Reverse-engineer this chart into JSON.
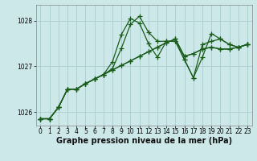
{
  "xlabel": "Graphe pression niveau de la mer (hPa)",
  "background_color": "#cce8e8",
  "grid_color": "#aacccc",
  "line_color": "#1a5c1a",
  "hours": [
    0,
    1,
    2,
    3,
    4,
    5,
    6,
    7,
    8,
    9,
    10,
    11,
    12,
    13,
    14,
    15,
    16,
    17,
    18,
    19,
    20,
    21,
    22,
    23
  ],
  "series": [
    [
      1025.85,
      1025.85,
      1026.1,
      1026.5,
      1026.5,
      1026.62,
      1026.72,
      1026.82,
      1026.92,
      1027.02,
      1027.12,
      1027.22,
      1027.32,
      1027.42,
      1027.52,
      1027.6,
      1027.22,
      1027.28,
      1027.38,
      1027.42,
      1027.38,
      1027.38,
      1027.42,
      1027.48
    ],
    [
      1025.85,
      1025.85,
      1026.1,
      1026.5,
      1026.5,
      1026.62,
      1026.72,
      1026.82,
      1026.92,
      1027.02,
      1027.12,
      1027.22,
      1027.32,
      1027.42,
      1027.52,
      1027.6,
      1027.22,
      1027.28,
      1027.38,
      1027.42,
      1027.38,
      1027.38,
      1027.42,
      1027.48
    ],
    [
      1025.85,
      1025.85,
      1026.1,
      1026.5,
      1026.5,
      1026.62,
      1026.72,
      1026.82,
      1026.95,
      1027.4,
      1027.92,
      1028.1,
      1027.75,
      1027.55,
      1027.55,
      1027.55,
      1027.15,
      1026.75,
      1027.2,
      1027.72,
      1027.6,
      1027.48,
      1027.42,
      1027.48
    ],
    [
      1025.85,
      1025.85,
      1026.1,
      1026.5,
      1026.5,
      1026.62,
      1026.72,
      1026.82,
      1027.1,
      1027.7,
      1028.05,
      1027.95,
      1027.5,
      1027.2,
      1027.55,
      1027.55,
      1027.15,
      1026.75,
      1027.48,
      1027.55,
      1027.6,
      1027.48,
      1027.42,
      1027.48
    ]
  ],
  "ylim": [
    1025.7,
    1028.35
  ],
  "yticks": [
    1026,
    1027,
    1028
  ],
  "xlim": [
    -0.5,
    23.5
  ],
  "xticks": [
    0,
    1,
    2,
    3,
    4,
    5,
    6,
    7,
    8,
    9,
    10,
    11,
    12,
    13,
    14,
    15,
    16,
    17,
    18,
    19,
    20,
    21,
    22,
    23
  ],
  "marker": "+",
  "markersize": 4,
  "linewidth": 0.9,
  "tick_fontsize": 5.5,
  "xlabel_fontsize": 7.0
}
